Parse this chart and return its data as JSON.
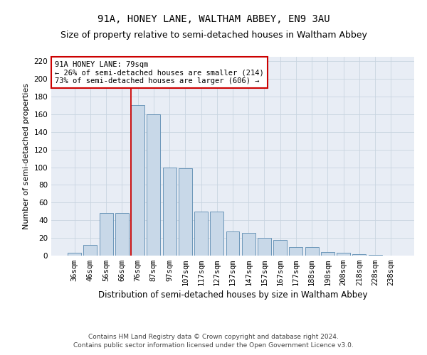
{
  "title_line1": "91A, HONEY LANE, WALTHAM ABBEY, EN9 3AU",
  "title_line2": "Size of property relative to semi-detached houses in Waltham Abbey",
  "xlabel": "Distribution of semi-detached houses by size in Waltham Abbey",
  "ylabel": "Number of semi-detached properties",
  "categories": [
    "36sqm",
    "46sqm",
    "56sqm",
    "66sqm",
    "76sqm",
    "87sqm",
    "97sqm",
    "107sqm",
    "117sqm",
    "127sqm",
    "137sqm",
    "147sqm",
    "157sqm",
    "167sqm",
    "177sqm",
    "188sqm",
    "198sqm",
    "208sqm",
    "218sqm",
    "228sqm",
    "238sqm"
  ],
  "values": [
    3,
    12,
    48,
    48,
    170,
    160,
    100,
    99,
    50,
    50,
    27,
    26,
    20,
    18,
    10,
    10,
    4,
    3,
    2,
    1,
    0
  ],
  "bar_color": "#c8d8e8",
  "bar_edge_color": "#5a8ab0",
  "highlight_bin_index": 4,
  "highlight_color": "#cc0000",
  "annotation_text": "91A HONEY LANE: 79sqm\n← 26% of semi-detached houses are smaller (214)\n73% of semi-detached houses are larger (606) →",
  "annotation_box_color": "#ffffff",
  "annotation_box_edge": "#cc0000",
  "ylim": [
    0,
    225
  ],
  "yticks": [
    0,
    20,
    40,
    60,
    80,
    100,
    120,
    140,
    160,
    180,
    200,
    220
  ],
  "grid_color": "#c8d4e0",
  "background_color": "#e8edf5",
  "footer_line1": "Contains HM Land Registry data © Crown copyright and database right 2024.",
  "footer_line2": "Contains public sector information licensed under the Open Government Licence v3.0.",
  "title1_fontsize": 10,
  "title2_fontsize": 9,
  "xlabel_fontsize": 8.5,
  "ylabel_fontsize": 8,
  "tick_fontsize": 7.5,
  "annotation_fontsize": 7.5,
  "footer_fontsize": 6.5
}
